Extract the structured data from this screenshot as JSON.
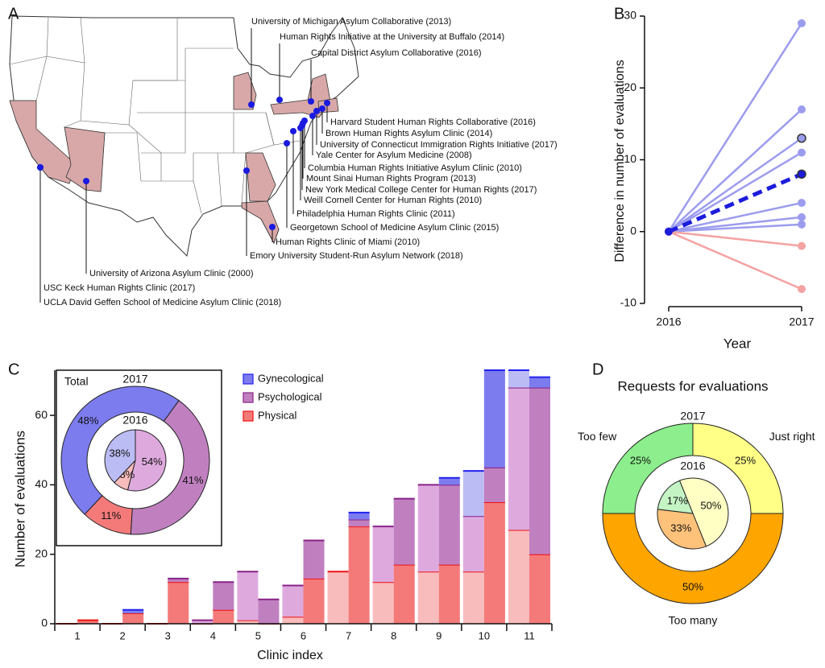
{
  "panel_labels": [
    "A",
    "B",
    "C",
    "D"
  ],
  "map": {
    "clinics": [
      "University of Michigan Asylum Collaborative (2013)",
      "Human Rights Initiative at the University at Buffalo (2014)",
      "Capital District Asylum Collaborative (2016)",
      "Harvard Student Human Rights Collaborative (2016)",
      "Brown Human Rights Asylum Clinic (2014)",
      "University of Connecticut Immigration Rights Initiative (2017)",
      "Yale Center for Asylum Medicine (2008)",
      "Columbia Human Rights Initiative Asylum Clinic (2010)",
      "Mount Sinai Human Rights Program (2013)",
      "New York Medical College Center for Human Rights (2017)",
      "Weill Cornell Center for Human Rights (2010)",
      "Philadelphia Human Rights Clinic (2011)",
      "Georgetown School of Medicine Asylum Clinic (2015)",
      "Human Rights Clinic of Miami (2010)",
      "Emory University Student-Run Asylum Network (2018)",
      "University of Arizona Asylum Clinic (2000)",
      "USC Keck Human Rights Clinic (2017)",
      "UCLA David Geffen School of Medicine Asylum Clinic (2018)"
    ]
  },
  "chart_data": [
    {
      "type": "line",
      "x_label": "Year",
      "y_label": "Difference in number of evaluations",
      "categories": [
        "2016",
        "2017"
      ],
      "ylim": [
        -10,
        30
      ],
      "yticks": [
        -10,
        0,
        10,
        20,
        30
      ],
      "series": [
        {
          "color": "#9c9cee",
          "values": [
            0,
            29
          ]
        },
        {
          "color": "#9c9cee",
          "values": [
            0,
            17
          ]
        },
        {
          "color": "#9c9cee",
          "values": [
            0,
            13
          ],
          "highlight": true
        },
        {
          "color": "#9c9cee",
          "values": [
            0,
            11
          ]
        },
        {
          "color": "#9c9cee",
          "values": [
            0,
            4
          ]
        },
        {
          "color": "#9c9cee",
          "values": [
            0,
            2
          ]
        },
        {
          "color": "#9c9cee",
          "values": [
            0,
            1
          ]
        },
        {
          "color": "#f4a2a2",
          "values": [
            0,
            -2
          ]
        },
        {
          "color": "#f4a2a2",
          "values": [
            0,
            -8
          ]
        },
        {
          "color": "#1c1cdc",
          "values": [
            0,
            8
          ],
          "highlight": true,
          "dashed": true
        }
      ]
    },
    {
      "type": "stacked-bar",
      "x_label": "Clinic index",
      "y_label": "Number of evaluations",
      "categories": [
        "1",
        "2",
        "3",
        "4",
        "5",
        "6",
        "7",
        "8",
        "9",
        "10",
        "11"
      ],
      "ylim": [
        0,
        73
      ],
      "yticks": [
        0,
        20,
        40,
        60
      ],
      "series": [
        {
          "name": "Gynecological",
          "colors": [
            "#bcbcf4",
            "#7c7cee"
          ],
          "line_color": "#2222ee",
          "values": [
            [
              0,
              0
            ],
            [
              0,
              1
            ],
            [
              0,
              0
            ],
            [
              0,
              0
            ],
            [
              0,
              0
            ],
            [
              0,
              0
            ],
            [
              0,
              2
            ],
            [
              0,
              0
            ],
            [
              0,
              2
            ],
            [
              13,
              28
            ],
            [
              5,
              3
            ]
          ]
        },
        {
          "name": "Psychological",
          "colors": [
            "#deaade",
            "#c080c0"
          ],
          "line_color": "#882288",
          "values": [
            [
              0,
              0
            ],
            [
              0,
              0
            ],
            [
              0,
              1
            ],
            [
              1,
              8
            ],
            [
              14,
              7
            ],
            [
              9,
              11
            ],
            [
              0,
              2
            ],
            [
              16,
              19
            ],
            [
              25,
              23
            ],
            [
              16,
              10
            ],
            [
              41,
              48
            ]
          ]
        },
        {
          "name": "Physical",
          "colors": [
            "#f9bcbc",
            "#f47a7a"
          ],
          "line_color": "#ee1111",
          "values": [
            [
              0,
              1
            ],
            [
              0,
              3
            ],
            [
              0,
              12
            ],
            [
              0,
              4
            ],
            [
              1,
              0
            ],
            [
              2,
              13
            ],
            [
              15,
              28
            ],
            [
              12,
              17
            ],
            [
              15,
              17
            ],
            [
              15,
              35
            ],
            [
              27,
              20
            ]
          ]
        }
      ]
    },
    {
      "type": "donut",
      "title": "Total",
      "series": [
        {
          "name": "2017",
          "colors": [
            "#7c7cee",
            "#c080c0",
            "#f47a7a"
          ],
          "values": [
            48,
            41,
            11
          ],
          "value_labels": [
            "48%",
            "41%",
            "11%"
          ]
        },
        {
          "name": "2016",
          "colors": [
            "#bcbcf4",
            "#deaade",
            "#f9bcbc"
          ],
          "values": [
            38,
            54,
            8
          ],
          "value_labels": [
            "38%",
            "54%",
            "8%"
          ]
        }
      ]
    },
    {
      "type": "donut",
      "title": "Requests for evaluations",
      "categories": [
        "Too few",
        "Just right",
        "Too many"
      ],
      "series": [
        {
          "name": "2017",
          "colors": [
            "#8cee8c",
            "#ffff88",
            "#ffa500"
          ],
          "values": [
            25,
            25,
            50
          ],
          "value_labels": [
            "25%",
            "25%",
            "50%"
          ]
        },
        {
          "name": "2016",
          "colors": [
            "#c4f4c4",
            "#ffffc4",
            "#ffc27a"
          ],
          "values": [
            17,
            50,
            33
          ],
          "value_labels": [
            "17%",
            "50%",
            "33%"
          ]
        }
      ]
    }
  ]
}
